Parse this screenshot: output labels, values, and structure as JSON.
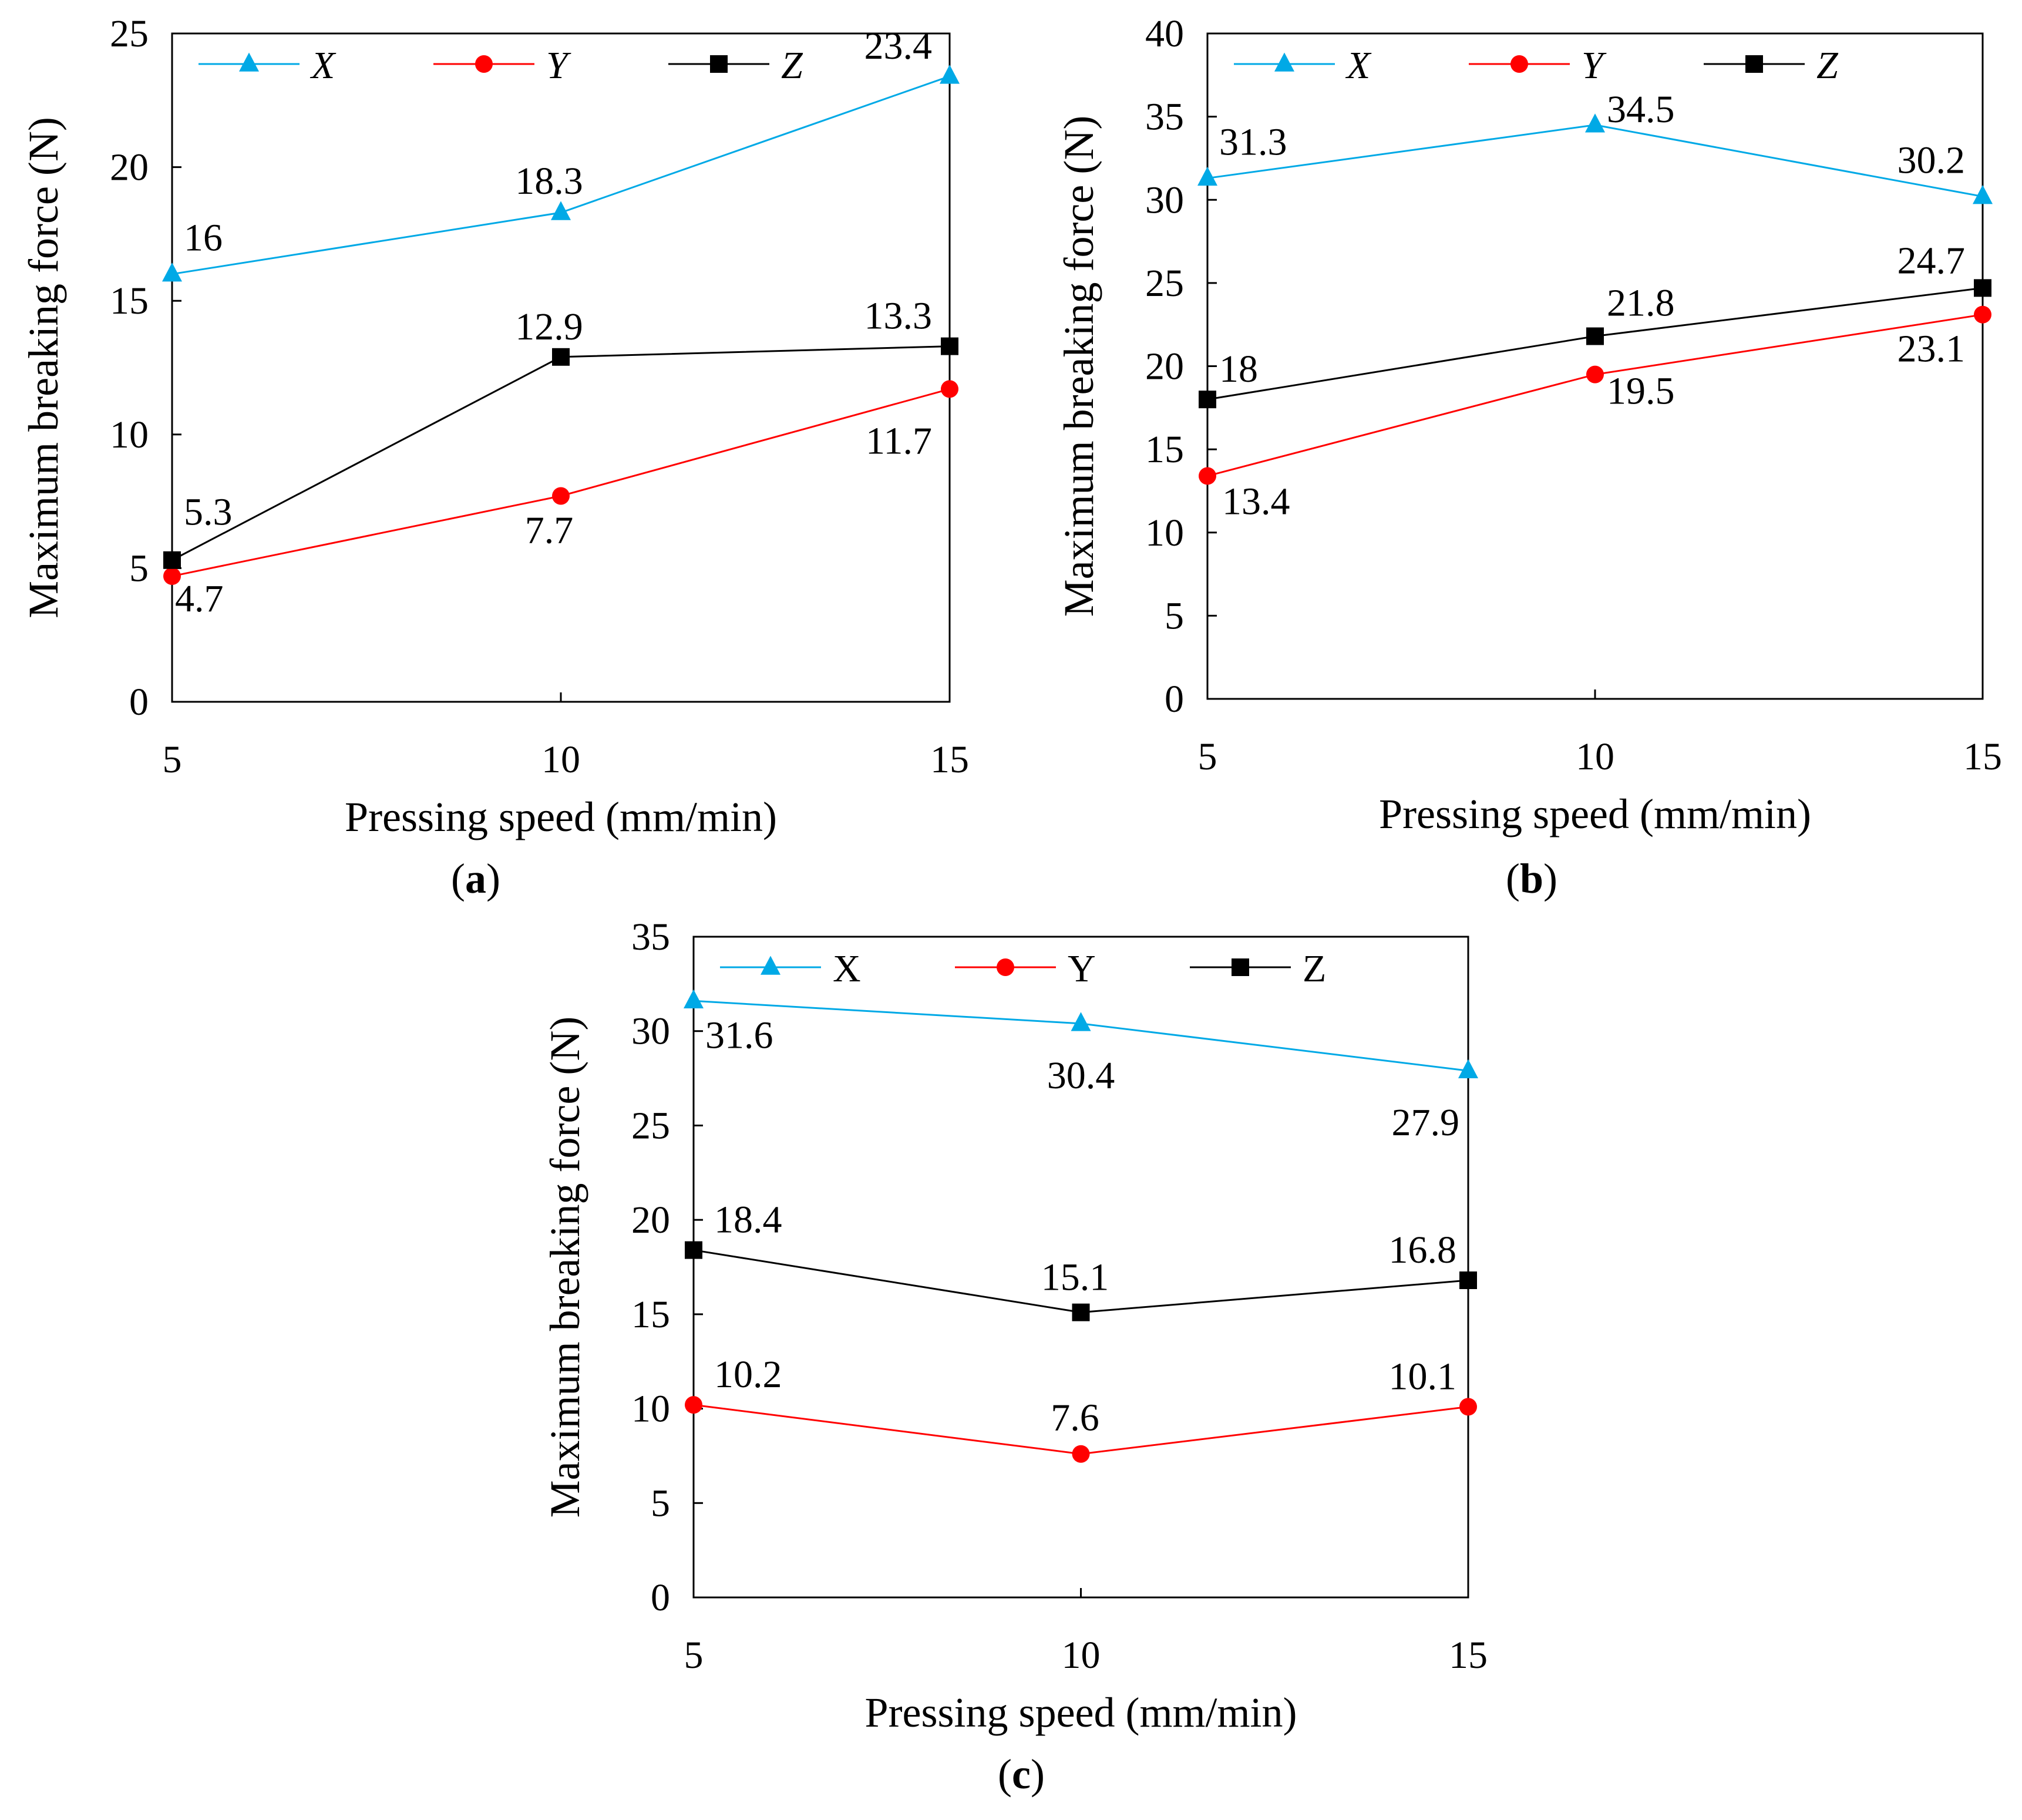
{
  "figure": {
    "colors": {
      "X": "#00a9e6",
      "Y": "#ff0000",
      "Z": "#000000"
    },
    "marker_shapes": {
      "X": "triangle-icon",
      "Y": "circle-icon",
      "Z": "square-icon"
    }
  },
  "chart_data": [
    {
      "id": "a",
      "type": "line",
      "caption": "(a)",
      "caption_letter": "a",
      "xlabel": "Pressing speed (mm/min)",
      "ylabel": "Maximum breaking force (N)",
      "x": [
        5,
        10,
        15
      ],
      "xticks": [
        "5",
        "10",
        "15"
      ],
      "ylim": [
        0,
        25
      ],
      "yticks": [
        "0",
        "5",
        "10",
        "15",
        "20",
        "25"
      ],
      "legend": {
        "position": "top-left",
        "italic": true,
        "labels": [
          "X",
          "Y",
          "Z"
        ]
      },
      "series": [
        {
          "name": "X",
          "values": [
            16,
            18.3,
            23.4
          ],
          "labels": [
            "16",
            "18.3",
            "23.4"
          ]
        },
        {
          "name": "Y",
          "values": [
            4.7,
            7.7,
            11.7
          ],
          "labels": [
            "4.7",
            "7.7",
            "11.7"
          ]
        },
        {
          "name": "Z",
          "values": [
            5.3,
            12.9,
            13.3
          ],
          "labels": [
            "5.3",
            "12.9",
            "13.3"
          ]
        }
      ]
    },
    {
      "id": "b",
      "type": "line",
      "caption": "(b)",
      "caption_letter": "b",
      "xlabel": "Pressing speed (mm/min)",
      "ylabel": "Maximum breaking force (N)",
      "x": [
        5,
        10,
        15
      ],
      "xticks": [
        "5",
        "10",
        "15"
      ],
      "ylim": [
        0,
        40
      ],
      "yticks": [
        "0",
        "5",
        "10",
        "15",
        "20",
        "25",
        "30",
        "35",
        "40"
      ],
      "legend": {
        "position": "top-left",
        "italic": true,
        "labels": [
          "X",
          "Y",
          "Z"
        ]
      },
      "series": [
        {
          "name": "X",
          "values": [
            31.3,
            34.5,
            30.2
          ],
          "labels": [
            "31.3",
            "34.5",
            "30.2"
          ]
        },
        {
          "name": "Y",
          "values": [
            13.4,
            19.5,
            23.1
          ],
          "labels": [
            "13.4",
            "19.5",
            "23.1"
          ]
        },
        {
          "name": "Z",
          "values": [
            18,
            21.8,
            24.7
          ],
          "labels": [
            "18",
            "21.8",
            "24.7"
          ]
        }
      ]
    },
    {
      "id": "c",
      "type": "line",
      "caption": "(c)",
      "caption_letter": "c",
      "xlabel": "Pressing speed (mm/min)",
      "ylabel": "Maximum breaking force (N)",
      "x": [
        5,
        10,
        15
      ],
      "xticks": [
        "5",
        "10",
        "15"
      ],
      "ylim": [
        0,
        35
      ],
      "yticks": [
        "0",
        "5",
        "10",
        "15",
        "20",
        "25",
        "30",
        "35"
      ],
      "legend": {
        "position": "top-left",
        "italic": false,
        "labels": [
          "X",
          "Y",
          "Z"
        ]
      },
      "series": [
        {
          "name": "X",
          "values": [
            31.6,
            30.4,
            27.9
          ],
          "labels": [
            "31.6",
            "30.4",
            "27.9"
          ]
        },
        {
          "name": "Y",
          "values": [
            10.2,
            7.6,
            10.1
          ],
          "labels": [
            "10.2",
            "7.6",
            "10.1"
          ]
        },
        {
          "name": "Z",
          "values": [
            18.4,
            15.1,
            16.8
          ],
          "labels": [
            "18.4",
            "15.1",
            "16.8"
          ]
        }
      ]
    }
  ]
}
